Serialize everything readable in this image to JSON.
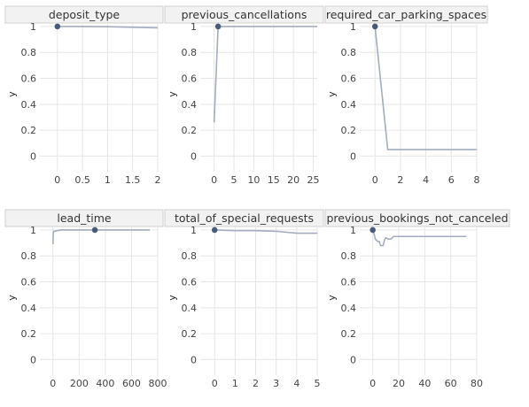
{
  "chart_data": [
    {
      "type": "line",
      "title": "deposit_type",
      "ylabel": "y",
      "xlim": [
        -0.35,
        2
      ],
      "ylim": [
        -0.12,
        1.02
      ],
      "x_ticks": [
        0,
        0.5,
        1,
        1.5,
        2
      ],
      "x_tick_labels": [
        "0",
        "0.5",
        "1",
        "1.5",
        "2"
      ],
      "y_ticks": [
        0,
        0.2,
        0.4,
        0.6,
        0.8,
        1
      ],
      "y_tick_labels": [
        "0",
        "0.2",
        "0.4",
        "0.6",
        "0.8",
        "1"
      ],
      "series": [
        {
          "x": [
            0,
            0.5,
            1,
            1.5,
            2
          ],
          "y": [
            1,
            1,
            0.998,
            0.994,
            0.99
          ]
        }
      ],
      "marker": {
        "x": 0,
        "y": 1
      }
    },
    {
      "type": "line",
      "title": "previous_cancellations",
      "ylabel": "y",
      "xlim": [
        -3.5,
        26
      ],
      "ylim": [
        -0.12,
        1.02
      ],
      "x_ticks": [
        0,
        5,
        10,
        15,
        20,
        25
      ],
      "x_tick_labels": [
        "0",
        "5",
        "10",
        "15",
        "20",
        "25"
      ],
      "y_ticks": [
        0,
        0.2,
        0.4,
        0.6,
        0.8,
        1
      ],
      "y_tick_labels": [
        "0",
        "0.2",
        "0.4",
        "0.6",
        "0.8",
        "1"
      ],
      "series": [
        {
          "x": [
            0,
            1,
            26
          ],
          "y": [
            0.26,
            1,
            1
          ]
        }
      ],
      "marker": {
        "x": 1,
        "y": 1
      }
    },
    {
      "type": "line",
      "title": "required_car_parking_spaces",
      "ylabel": "y",
      "xlim": [
        -1.2,
        8
      ],
      "ylim": [
        -0.12,
        1.02
      ],
      "x_ticks": [
        0,
        2,
        4,
        6,
        8
      ],
      "x_tick_labels": [
        "0",
        "2",
        "4",
        "6",
        "8"
      ],
      "y_ticks": [
        0,
        0.2,
        0.4,
        0.6,
        0.8,
        1
      ],
      "y_tick_labels": [
        "0",
        "0.2",
        "0.4",
        "0.6",
        "0.8",
        "1"
      ],
      "series": [
        {
          "x": [
            0,
            1,
            8
          ],
          "y": [
            1,
            0.05,
            0.05
          ]
        }
      ],
      "marker": {
        "x": 0,
        "y": 1
      }
    },
    {
      "type": "line",
      "title": "lead_time",
      "ylabel": "y",
      "xlim": [
        -100,
        800
      ],
      "ylim": [
        -0.12,
        1.02
      ],
      "x_ticks": [
        0,
        200,
        400,
        600,
        800
      ],
      "x_tick_labels": [
        "0",
        "200",
        "400",
        "600",
        "800"
      ],
      "y_ticks": [
        0,
        0.2,
        0.4,
        0.6,
        0.8,
        1
      ],
      "y_tick_labels": [
        "0",
        "0.2",
        "0.4",
        "0.6",
        "0.8",
        "1"
      ],
      "series": [
        {
          "x": [
            0,
            2,
            5,
            15,
            30,
            60,
            100,
            150,
            200,
            300,
            320,
            400,
            500,
            600,
            700,
            740
          ],
          "y": [
            0.89,
            0.97,
            0.99,
            0.99,
            0.995,
            1,
            1,
            1,
            1,
            1,
            1,
            1,
            1,
            1,
            1,
            1
          ]
        }
      ],
      "marker": {
        "x": 320,
        "y": 1
      }
    },
    {
      "type": "line",
      "title": "total_of_special_requests",
      "ylabel": "y",
      "xlim": [
        -0.7,
        5
      ],
      "ylim": [
        -0.12,
        1.02
      ],
      "x_ticks": [
        0,
        1,
        2,
        3,
        4,
        5
      ],
      "x_tick_labels": [
        "0",
        "1",
        "2",
        "3",
        "4",
        "5"
      ],
      "y_ticks": [
        0,
        0.2,
        0.4,
        0.6,
        0.8,
        1
      ],
      "y_tick_labels": [
        "0",
        "0.2",
        "0.4",
        "0.6",
        "0.8",
        "1"
      ],
      "series": [
        {
          "x": [
            0,
            1,
            2,
            3,
            4,
            5
          ],
          "y": [
            1,
            0.995,
            0.995,
            0.99,
            0.975,
            0.975
          ]
        }
      ],
      "marker": {
        "x": 0,
        "y": 1
      }
    },
    {
      "type": "line",
      "title": "previous_bookings_not_canceled",
      "ylabel": "y",
      "xlim": [
        -10,
        80
      ],
      "ylim": [
        -0.12,
        1.02
      ],
      "x_ticks": [
        0,
        20,
        40,
        60,
        80
      ],
      "x_tick_labels": [
        "0",
        "20",
        "40",
        "60",
        "80"
      ],
      "y_ticks": [
        0,
        0.2,
        0.4,
        0.6,
        0.8,
        1
      ],
      "y_tick_labels": [
        "0",
        "0.2",
        "0.4",
        "0.6",
        "0.8",
        "1"
      ],
      "series": [
        {
          "x": [
            0,
            1,
            2,
            3,
            4,
            5,
            6,
            7,
            8,
            9,
            10,
            12,
            14,
            16,
            20,
            25,
            30,
            40,
            50,
            60,
            72
          ],
          "y": [
            1,
            0.97,
            0.93,
            0.92,
            0.91,
            0.91,
            0.88,
            0.88,
            0.88,
            0.92,
            0.94,
            0.93,
            0.93,
            0.95,
            0.95,
            0.95,
            0.95,
            0.95,
            0.95,
            0.95,
            0.95
          ]
        }
      ],
      "marker": {
        "x": 0,
        "y": 1
      }
    }
  ],
  "colors": {
    "line": "#a3adbf",
    "marker": "#4a5a7a",
    "header": "#f2f2f2",
    "grid": "#e6e6e6"
  }
}
